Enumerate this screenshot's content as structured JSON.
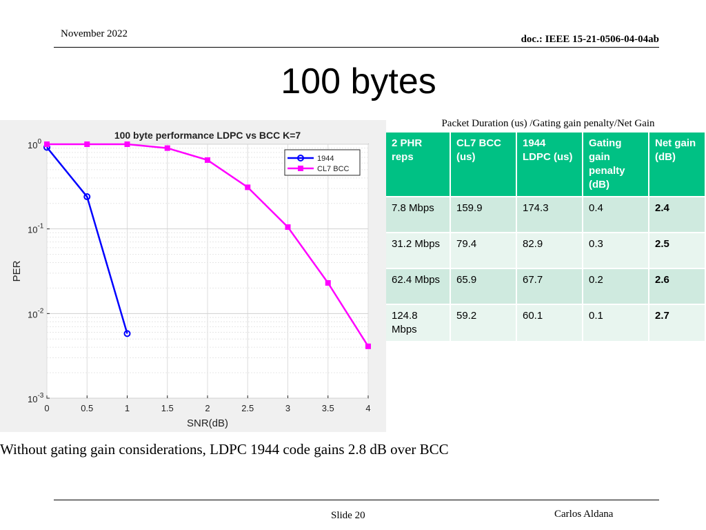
{
  "header": {
    "date": "November 2022",
    "doc": "doc.: IEEE 15-21-0506-04-04ab"
  },
  "slide_title": "100 bytes",
  "table_caption": "Packet Duration (us) /Gating gain penalty/Net Gain",
  "table": {
    "headers": [
      "2 PHR reps",
      "CL7 BCC (us)",
      "1944 LDPC (us)",
      "Gating gain penalty (dB)",
      "Net gain (dB)"
    ],
    "rows": [
      [
        "7.8 Mbps",
        "159.9",
        "174.3",
        "0.4",
        "2.4"
      ],
      [
        "31.2 Mbps",
        "79.4",
        "82.9",
        "0.3",
        "2.5"
      ],
      [
        "62.4 Mbps",
        "65.9",
        "67.7",
        "0.2",
        "2.6"
      ],
      [
        "124.8 Mbps",
        "59.2",
        "60.1",
        "0.1",
        "2.7"
      ]
    ]
  },
  "chart_data": {
    "type": "line",
    "title": "100 byte performance LDPC vs BCC K=7",
    "xlabel": "SNR(dB)",
    "ylabel": "PER",
    "x_scale": "linear",
    "y_scale": "log",
    "xlim": [
      0,
      4
    ],
    "ylim": [
      0.001,
      1
    ],
    "x_ticks": [
      "0",
      "0.5",
      "1",
      "1.5",
      "2",
      "2.5",
      "3",
      "3.5",
      "4"
    ],
    "y_ticks": [
      {
        "base": "10",
        "exp": "0"
      },
      {
        "base": "10",
        "exp": "-1"
      },
      {
        "base": "10",
        "exp": "-2"
      },
      {
        "base": "10",
        "exp": "-3"
      }
    ],
    "grid": true,
    "legend_position": "top-right",
    "series": [
      {
        "name": "1944",
        "color": "#0000ff",
        "marker": "circle",
        "x": [
          0,
          0.5,
          1
        ],
        "y": [
          0.92,
          0.24,
          0.0058
        ]
      },
      {
        "name": "CL7 BCC",
        "color": "#ff00ff",
        "marker": "square",
        "x": [
          0,
          0.5,
          1,
          1.5,
          2,
          2.5,
          3,
          3.5,
          4
        ],
        "y": [
          1.0,
          1.0,
          1.0,
          0.9,
          0.65,
          0.31,
          0.105,
          0.023,
          0.0041
        ]
      }
    ]
  },
  "footnote": "Without gating gain considerations, LDPC 1944 code gains 2.8 dB over BCC",
  "footer": {
    "slide": "Slide 20",
    "author": "Carlos Aldana"
  }
}
